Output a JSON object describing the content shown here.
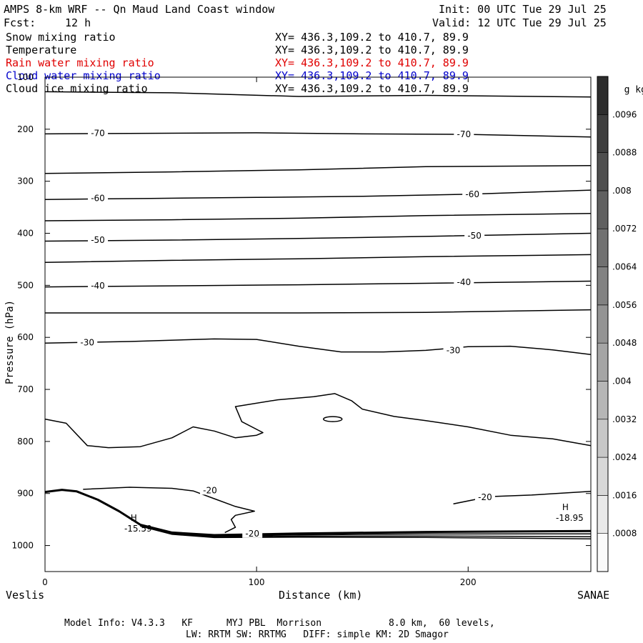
{
  "header": {
    "title": "AMPS 8-km WRF -- Qn Maud Land Coast window",
    "init": "Init: 00 UTC Tue 29 Jul 25",
    "fcst_label": "Fcst:",
    "fcst_value": "12 h",
    "valid": "Valid: 12 UTC Tue 29 Jul 25"
  },
  "fields": [
    {
      "name": "Snow mixing ratio",
      "xy": "XY= 436.3,109.2 to 410.7, 89.9",
      "color": "#000000"
    },
    {
      "name": "Temperature",
      "xy": "XY= 436.3,109.2 to 410.7, 89.9",
      "color": "#000000"
    },
    {
      "name": "Rain water mixing ratio",
      "xy": "XY= 436.3,109.2 to 410.7, 89.9",
      "color": "#e00000"
    },
    {
      "name": "Cloud water mixing ratio",
      "xy": "XY= 436.3,109.2 to 410.7, 89.9",
      "color": "#0000cc"
    },
    {
      "name": "Cloud ice mixing ratio",
      "xy": "XY= 436.3,109.2 to 410.7, 89.9",
      "color": "#000000"
    }
  ],
  "footer": {
    "line1": "Model Info: V4.3.3   KF      MYJ PBL  Morrison            8.0 km,  60 levels,",
    "line2": "LW: RRTM SW: RRTMG   DIFF: simple KM: 2D Smagor"
  },
  "chart_data": {
    "type": "contour",
    "xlabel": "Distance (km)",
    "ylabel": "Pressure (hPa)",
    "xlim": [
      0,
      258
    ],
    "ylim": [
      1050,
      100
    ],
    "x_ticks": [
      0,
      100,
      200
    ],
    "y_ticks": [
      100,
      200,
      300,
      400,
      500,
      600,
      700,
      800,
      900,
      1000
    ],
    "x_endpoints": {
      "left": "Veslis",
      "right": "SANAE"
    },
    "colorbar": {
      "unit_label": "g kg",
      "unit_exponent": "-1",
      "ticks": [
        ".0008",
        ".0016",
        ".0024",
        ".0032",
        ".004",
        ".0048",
        ".0056",
        ".0064",
        ".0072",
        ".008",
        ".0088",
        ".0096"
      ],
      "min": 0,
      "max": 0.0104,
      "step": 0.0008
    },
    "isotherms": [
      {
        "level": -75,
        "points": [
          [
            0,
            128
          ],
          [
            60,
            130
          ],
          [
            120,
            137
          ],
          [
            180,
            135
          ],
          [
            258,
            138
          ]
        ]
      },
      {
        "level": -70,
        "points": [
          [
            0,
            209
          ],
          [
            40,
            208
          ],
          [
            100,
            207
          ],
          [
            150,
            209
          ],
          [
            200,
            210
          ],
          [
            258,
            215
          ]
        ]
      },
      {
        "level": -65,
        "points": [
          [
            0,
            285
          ],
          [
            60,
            282
          ],
          [
            120,
            278
          ],
          [
            180,
            272
          ],
          [
            258,
            270
          ]
        ]
      },
      {
        "level": -60,
        "points": [
          [
            0,
            335
          ],
          [
            50,
            333
          ],
          [
            100,
            331
          ],
          [
            150,
            329
          ],
          [
            200,
            325
          ],
          [
            258,
            317
          ]
        ]
      },
      {
        "level": -55,
        "points": [
          [
            0,
            376
          ],
          [
            60,
            374
          ],
          [
            120,
            371
          ],
          [
            180,
            366
          ],
          [
            258,
            362
          ]
        ]
      },
      {
        "level": -50,
        "points": [
          [
            0,
            415
          ],
          [
            60,
            413
          ],
          [
            120,
            410
          ],
          [
            180,
            406
          ],
          [
            258,
            400
          ]
        ]
      },
      {
        "level": -45,
        "points": [
          [
            0,
            456
          ],
          [
            60,
            452
          ],
          [
            120,
            449
          ],
          [
            180,
            445
          ],
          [
            258,
            441
          ]
        ]
      },
      {
        "level": -40,
        "points": [
          [
            0,
            503
          ],
          [
            60,
            501
          ],
          [
            120,
            499
          ],
          [
            180,
            496
          ],
          [
            258,
            492
          ]
        ]
      },
      {
        "level": -35,
        "points": [
          [
            0,
            553
          ],
          [
            60,
            553
          ],
          [
            120,
            553
          ],
          [
            180,
            552
          ],
          [
            258,
            547
          ]
        ]
      },
      {
        "level": -30,
        "points": [
          [
            0,
            611
          ],
          [
            40,
            608
          ],
          [
            80,
            603
          ],
          [
            100,
            604
          ],
          [
            120,
            617
          ],
          [
            140,
            628
          ],
          [
            160,
            628
          ],
          [
            180,
            625
          ],
          [
            200,
            618
          ],
          [
            220,
            617
          ],
          [
            240,
            624
          ],
          [
            258,
            633
          ]
        ]
      },
      {
        "level": -25,
        "points": [
          [
            0,
            757
          ],
          [
            10,
            765
          ],
          [
            20,
            808
          ],
          [
            30,
            812
          ],
          [
            45,
            810
          ],
          [
            60,
            793
          ],
          [
            70,
            772
          ],
          [
            80,
            780
          ],
          [
            90,
            793
          ],
          [
            100,
            788
          ],
          [
            103,
            783
          ],
          [
            93,
            762
          ],
          [
            90,
            733
          ],
          [
            110,
            720
          ],
          [
            127,
            714
          ],
          [
            137,
            708
          ],
          [
            145,
            722
          ],
          [
            150,
            738
          ],
          [
            165,
            752
          ],
          [
            180,
            760
          ],
          [
            200,
            772
          ],
          [
            220,
            788
          ],
          [
            240,
            795
          ],
          [
            258,
            808
          ]
        ]
      },
      {
        "level": -20,
        "points": [
          [
            18,
            892
          ],
          [
            40,
            888
          ],
          [
            60,
            890
          ],
          [
            70,
            895
          ],
          [
            80,
            910
          ],
          [
            90,
            925
          ],
          [
            99,
            934
          ],
          [
            90,
            942
          ],
          [
            88,
            950
          ],
          [
            90,
            965
          ],
          [
            85,
            975
          ]
        ]
      },
      {
        "level": -20,
        "points": [
          [
            193,
            920
          ],
          [
            210,
            906
          ],
          [
            230,
            903
          ],
          [
            258,
            896
          ]
        ]
      },
      {
        "level": -15,
        "points": [
          [
            0,
            897
          ],
          [
            8,
            893
          ],
          [
            15,
            896
          ],
          [
            25,
            912
          ],
          [
            35,
            934
          ],
          [
            45,
            960
          ],
          [
            60,
            975
          ],
          [
            80,
            980
          ],
          [
            120,
            977
          ],
          [
            180,
            974
          ],
          [
            258,
            972
          ]
        ]
      }
    ],
    "contour_labels": [
      {
        "text": "-70",
        "x": 25,
        "p": 208
      },
      {
        "text": "-70",
        "x": 198,
        "p": 210
      },
      {
        "text": "-60",
        "x": 25,
        "p": 333
      },
      {
        "text": "-60",
        "x": 202,
        "p": 325
      },
      {
        "text": "-50",
        "x": 25,
        "p": 413
      },
      {
        "text": "-50",
        "x": 203,
        "p": 405
      },
      {
        "text": "-40",
        "x": 25,
        "p": 501
      },
      {
        "text": "-40",
        "x": 198,
        "p": 494
      },
      {
        "text": "-30",
        "x": 20,
        "p": 610
      },
      {
        "text": "-30",
        "x": 193,
        "p": 625
      },
      {
        "text": "-20",
        "x": 78,
        "p": 894
      },
      {
        "text": "-20",
        "x": 208,
        "p": 907
      },
      {
        "text": "-20",
        "x": 98,
        "p": 977
      }
    ],
    "highs": [
      {
        "label": "H",
        "value": "-15.59",
        "x": 44,
        "p": 955
      },
      {
        "label": "H",
        "value": "-18.95",
        "x": 248,
        "p": 935
      }
    ]
  }
}
